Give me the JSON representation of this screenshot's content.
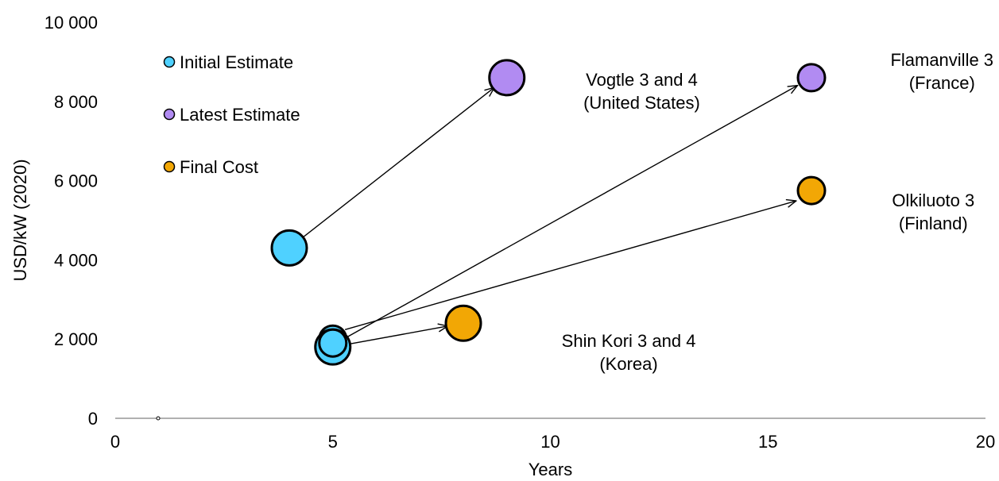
{
  "chart_data": {
    "type": "scatter",
    "xlabel": "Years",
    "ylabel": "USD/kW (2020)",
    "xlim": [
      0,
      20
    ],
    "ylim": [
      0,
      10000
    ],
    "x_ticks": [
      {
        "value": 0,
        "label": "0"
      },
      {
        "value": 5,
        "label": "5"
      },
      {
        "value": 10,
        "label": "10"
      },
      {
        "value": 15,
        "label": "15"
      },
      {
        "value": 20,
        "label": "20"
      }
    ],
    "y_ticks": [
      {
        "value": 0,
        "label": "0"
      },
      {
        "value": 2000,
        "label": "2 000"
      },
      {
        "value": 4000,
        "label": "4 000"
      },
      {
        "value": 6000,
        "label": "6 000"
      },
      {
        "value": 8000,
        "label": "8 000"
      },
      {
        "value": 10000,
        "label": "10 000"
      }
    ],
    "grid": false,
    "legend_position": "top-left",
    "legend": [
      {
        "name": "Initial Estimate",
        "color": "#4fd1ff"
      },
      {
        "name": "Latest Estimate",
        "color": "#b18bf2"
      },
      {
        "name": "Final Cost",
        "color": "#f2a705"
      }
    ],
    "points": [
      {
        "series": "Initial Estimate",
        "x": 4,
        "y": 4300,
        "size": "large"
      },
      {
        "series": "Initial Estimate",
        "x": 5,
        "y": 2000,
        "size": "medium"
      },
      {
        "series": "Initial Estimate",
        "x": 5,
        "y": 1800,
        "size": "large"
      },
      {
        "series": "Initial Estimate",
        "x": 5,
        "y": 1900,
        "size": "medium"
      },
      {
        "series": "Latest Estimate",
        "x": 9,
        "y": 8600,
        "size": "large"
      },
      {
        "series": "Latest Estimate",
        "x": 16,
        "y": 8600,
        "size": "medium"
      },
      {
        "series": "Final Cost",
        "x": 16,
        "y": 5750,
        "size": "medium"
      },
      {
        "series": "Final Cost",
        "x": 8,
        "y": 2400,
        "size": "large"
      }
    ],
    "arrows": [
      {
        "from": [
          4,
          4300
        ],
        "to": [
          9,
          8600
        ]
      },
      {
        "from": [
          5,
          1850
        ],
        "to": [
          16,
          8600
        ]
      },
      {
        "from": [
          5,
          2150
        ],
        "to": [
          16,
          5600
        ]
      },
      {
        "from": [
          5,
          1800
        ],
        "to": [
          8,
          2400
        ]
      }
    ],
    "annotations": [
      {
        "lines": [
          "Vogtle 3 and 4",
          "(United States)"
        ],
        "x": 12.1,
        "y": 8400
      },
      {
        "lines": [
          "Flamanville 3",
          "(France)"
        ],
        "x": 19.0,
        "y": 8900
      },
      {
        "lines": [
          "Olkiluoto 3",
          "(Finland)"
        ],
        "x": 18.8,
        "y": 5350
      },
      {
        "lines": [
          "Shin Kori 3 and 4",
          "(Korea)"
        ],
        "x": 11.8,
        "y": 1800
      }
    ],
    "colors": {
      "outline": "#000000",
      "axis": "#808080"
    }
  }
}
